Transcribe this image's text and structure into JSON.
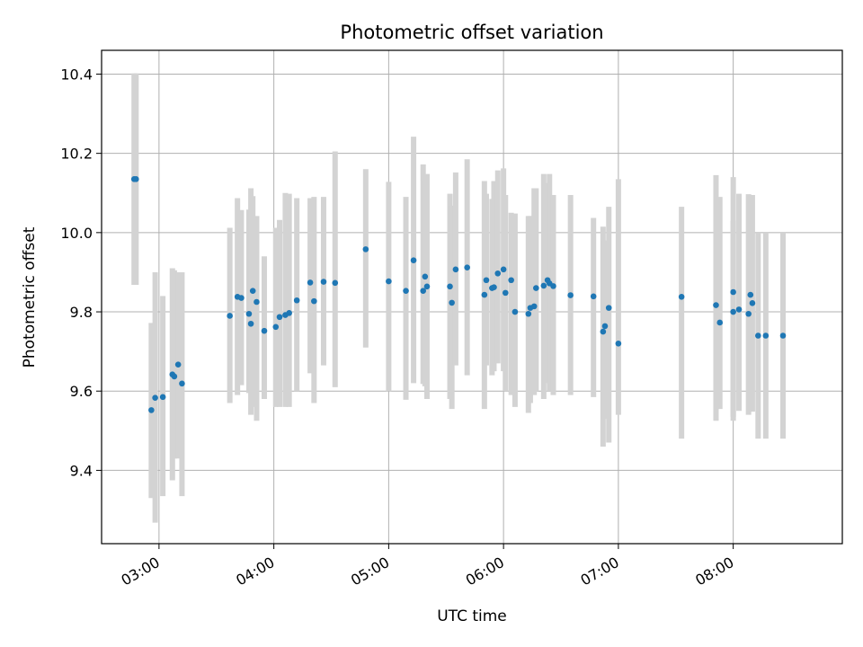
{
  "chart_data": {
    "type": "scatter",
    "title": "Photometric offset variation",
    "xlabel": "UTC time",
    "ylabel": "Photometric offset",
    "x_ticks": [
      "03:00",
      "04:00",
      "05:00",
      "06:00",
      "07:00",
      "08:00"
    ],
    "y_ticks": [
      "9.4",
      "9.6",
      "9.8",
      "10.0",
      "10.2",
      "10.4"
    ],
    "xlim": [
      "02:30",
      "08:57"
    ],
    "ylim": [
      9.215,
      10.46
    ],
    "grid": true,
    "colors": {
      "points": "#1f77b4",
      "error_bars": "#d3d3d3",
      "grid": "#b0b0b0"
    },
    "series": [
      {
        "x": [
          "02:47",
          "02:48",
          "02:56",
          "02:58",
          "03:02",
          "03:07",
          "03:08",
          "03:10",
          "03:12",
          "03:37",
          "03:41",
          "03:43",
          "03:47",
          "03:48",
          "03:49",
          "03:51",
          "03:55",
          "04:01",
          "04:03",
          "04:06",
          "04:08",
          "04:12",
          "04:19",
          "04:21",
          "04:26",
          "04:32",
          "04:48",
          "05:00",
          "05:09",
          "05:13",
          "05:18",
          "05:19",
          "05:20",
          "05:32",
          "05:33",
          "05:35",
          "05:41",
          "05:50",
          "05:51",
          "05:54",
          "05:55",
          "05:57",
          "06:00",
          "06:01",
          "06:04",
          "06:06",
          "06:13",
          "06:14",
          "06:16",
          "06:17",
          "06:21",
          "06:23",
          "06:24",
          "06:26",
          "06:35",
          "06:47",
          "06:52",
          "06:53",
          "06:55",
          "07:00",
          "07:33",
          "07:51",
          "07:53",
          "08:00",
          "08:00",
          "08:03",
          "08:08",
          "08:09",
          "08:10",
          "08:13",
          "08:17",
          "08:26"
        ],
        "y": [
          10.135,
          10.135,
          9.552,
          9.583,
          9.585,
          9.642,
          9.637,
          9.667,
          9.619,
          9.79,
          9.838,
          9.835,
          9.795,
          9.77,
          9.853,
          9.825,
          9.752,
          9.762,
          9.787,
          9.792,
          9.797,
          9.829,
          9.874,
          9.827,
          9.876,
          9.873,
          9.958,
          9.877,
          9.853,
          9.93,
          9.853,
          9.889,
          9.864,
          9.864,
          9.823,
          9.907,
          9.912,
          9.843,
          9.88,
          9.86,
          9.862,
          9.897,
          9.907,
          9.848,
          9.88,
          9.8,
          9.795,
          9.81,
          9.814,
          9.86,
          9.866,
          9.88,
          9.872,
          9.865,
          9.842,
          9.839,
          9.75,
          9.764,
          9.81,
          9.72,
          9.838,
          9.817,
          9.773,
          9.8,
          9.85,
          9.806,
          9.795,
          9.843,
          9.822,
          9.74,
          9.74,
          9.74
        ],
        "yerr_low": [
          9.868,
          9.868,
          9.33,
          9.268,
          9.335,
          9.375,
          9.43,
          9.43,
          9.335,
          9.57,
          9.59,
          9.615,
          9.595,
          9.54,
          9.56,
          9.525,
          9.58,
          9.56,
          9.56,
          9.56,
          9.56,
          9.6,
          9.645,
          9.57,
          9.665,
          9.61,
          9.71,
          9.6,
          9.578,
          9.62,
          9.618,
          9.612,
          9.58,
          9.58,
          9.555,
          9.665,
          9.64,
          9.555,
          9.665,
          9.64,
          9.65,
          9.67,
          9.65,
          9.6,
          9.59,
          9.56,
          9.545,
          9.57,
          9.59,
          9.6,
          9.58,
          9.62,
          9.6,
          9.59,
          9.59,
          9.585,
          9.46,
          9.53,
          9.47,
          9.54,
          9.48,
          9.525,
          9.555,
          9.525,
          9.535,
          9.55,
          9.54,
          9.58,
          9.548,
          9.48,
          9.48,
          9.48
        ],
        "yerr_high": [
          10.402,
          10.402,
          9.772,
          9.9,
          9.84,
          9.91,
          9.905,
          9.9,
          9.9,
          10.012,
          10.087,
          10.057,
          10.058,
          10.112,
          10.092,
          10.042,
          9.94,
          10.012,
          10.032,
          10.1,
          10.098,
          10.087,
          10.087,
          10.09,
          10.09,
          10.205,
          10.16,
          10.128,
          10.09,
          10.242,
          10.172,
          10.132,
          10.148,
          10.098,
          10.068,
          10.152,
          10.185,
          10.13,
          10.098,
          10.085,
          10.13,
          10.157,
          10.162,
          10.095,
          10.05,
          10.048,
          10.042,
          10.042,
          10.112,
          10.112,
          10.148,
          10.125,
          10.148,
          10.095,
          10.095,
          10.037,
          10.015,
          9.98,
          10.065,
          10.135,
          10.065,
          10.145,
          10.09,
          10.14,
          10.03,
          10.098,
          10.097,
          10.0,
          10.095,
          10.0,
          10.0,
          10.0
        ]
      }
    ]
  }
}
